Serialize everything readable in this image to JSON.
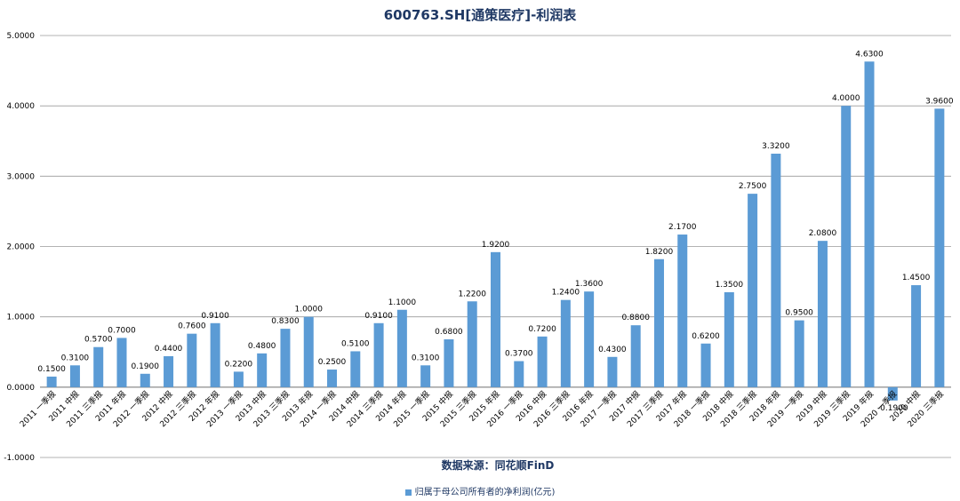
{
  "chart_data": {
    "type": "bar",
    "title": "600763.SH[通策医疗]-利润表",
    "xlabel": "",
    "ylabel": "",
    "ylim": [
      -1,
      5
    ],
    "yticks": [
      "-1.0000",
      "0.0000",
      "1.0000",
      "2.0000",
      "3.0000",
      "4.0000",
      "5.0000"
    ],
    "grid": true,
    "legend_position": "bottom",
    "source": "数据来源：同花顺FinD",
    "color": "#5b9bd5",
    "categories": [
      "2011 一季报",
      "2011 中报",
      "2011 三季报",
      "2011 年报",
      "2012 一季报",
      "2012 中报",
      "2012 三季报",
      "2012 年报",
      "2013 一季报",
      "2013 中报",
      "2013 三季报",
      "2013 年报",
      "2014 一季报",
      "2014 中报",
      "2014 三季报",
      "2014 年报",
      "2015 一季报",
      "2015 中报",
      "2015 三季报",
      "2015 年报",
      "2016 一季报",
      "2016 中报",
      "2016 三季报",
      "2016 年报",
      "2017 一季报",
      "2017 中报",
      "2017 三季报",
      "2017 年报",
      "2018 一季报",
      "2018 中报",
      "2018 三季报",
      "2018 年报",
      "2019 一季报",
      "2019 中报",
      "2019 三季报",
      "2019 年报",
      "2020 一季报",
      "2020 中报",
      "2020 三季报"
    ],
    "series": [
      {
        "name": "归属于母公司所有者的净利润(亿元)",
        "values": [
          0.15,
          0.31,
          0.57,
          0.7,
          0.19,
          0.44,
          0.76,
          0.91,
          0.22,
          0.48,
          0.83,
          1.0,
          0.25,
          0.51,
          0.91,
          1.1,
          0.31,
          0.68,
          1.22,
          1.92,
          0.37,
          0.72,
          1.24,
          1.36,
          0.43,
          0.88,
          1.82,
          2.17,
          0.62,
          1.35,
          2.75,
          3.32,
          0.95,
          2.08,
          4.0,
          4.63,
          -0.19,
          1.45,
          3.96
        ],
        "labels": [
          "0.1500",
          "0.3100",
          "0.5700",
          "0.7000",
          "0.1900",
          "0.4400",
          "0.7600",
          "0.9100",
          "0.2200",
          "0.4800",
          "0.8300",
          "1.0000",
          "0.2500",
          "0.5100",
          "0.9100",
          "1.1000",
          "0.3100",
          "0.6800",
          "1.2200",
          "1.9200",
          "0.3700",
          "0.7200",
          "1.2400",
          "1.3600",
          "0.4300",
          "0.8800",
          "1.8200",
          "2.1700",
          "0.6200",
          "1.3500",
          "2.7500",
          "3.3200",
          "0.9500",
          "2.0800",
          "4.0000",
          "4.6300",
          "-0.1900",
          "1.4500",
          "3.9600"
        ]
      }
    ]
  }
}
